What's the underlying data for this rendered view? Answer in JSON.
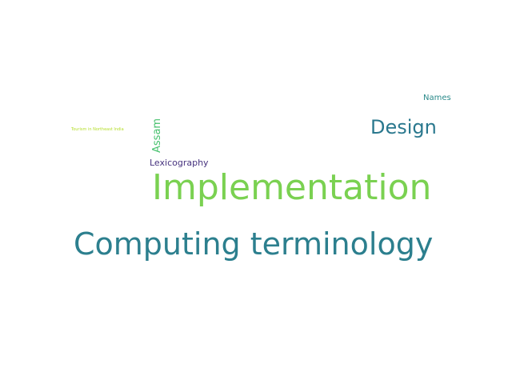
{
  "words": [
    {
      "key": "names",
      "text": "Names",
      "color": "#2a8a8a"
    },
    {
      "key": "tourism",
      "text": "Tourism in Northeast India",
      "color": "#b5de2b"
    },
    {
      "key": "assam",
      "text": "Assam",
      "color": "#47c16e"
    },
    {
      "key": "design",
      "text": "Design",
      "color": "#2a788e"
    },
    {
      "key": "lexicography",
      "text": "Lexicography",
      "color": "#46327e"
    },
    {
      "key": "implementation",
      "text": "Implementation",
      "color": "#7ad151"
    },
    {
      "key": "computing",
      "text": "Computing terminology",
      "color": "#2c7f8e"
    }
  ]
}
